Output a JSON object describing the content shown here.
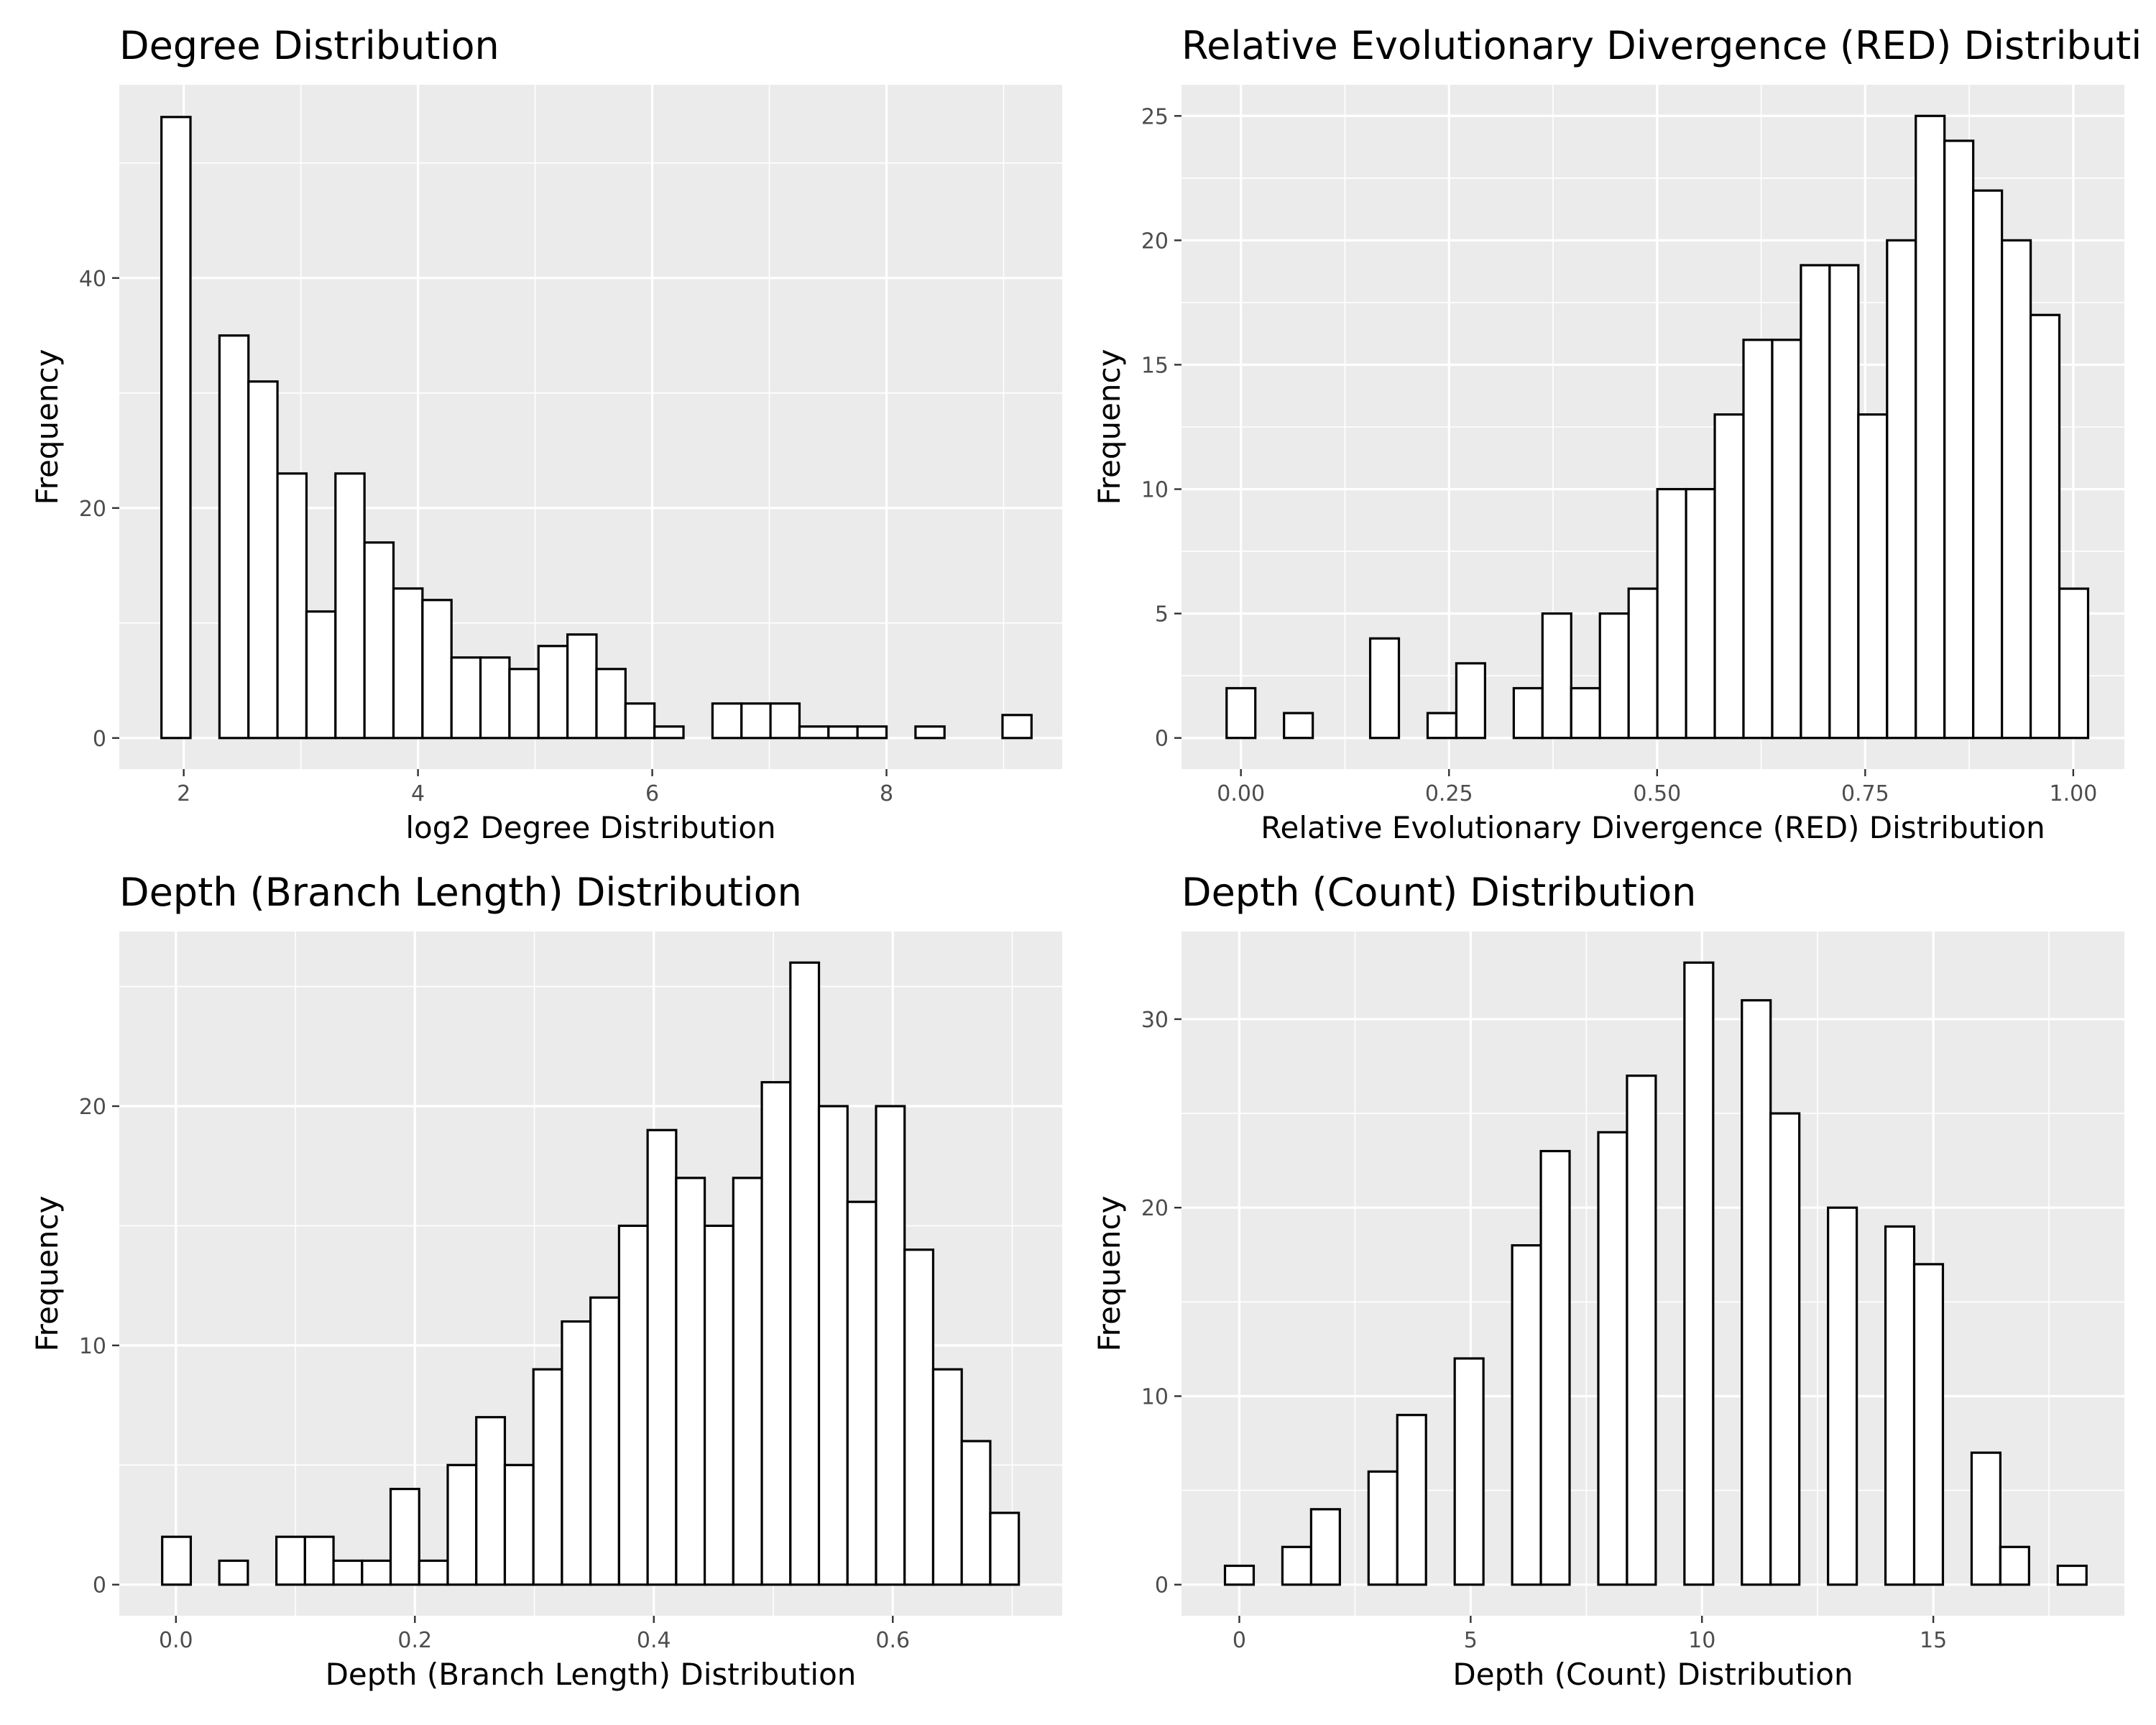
{
  "chart_data": [
    {
      "type": "bar",
      "title": "Degree Distribution",
      "xlabel": "log2 Degree Distribution",
      "ylabel": "Frequency",
      "xlim": [
        1.45,
        9.5
      ],
      "ylim": [
        -2.7,
        56.8
      ],
      "xticks": [
        2,
        4,
        6,
        8
      ],
      "xtick_labels": [
        "2",
        "4",
        "6",
        "8"
      ],
      "yticks": [
        0,
        20,
        40
      ],
      "ytick_labels": [
        "0",
        "20",
        "40"
      ],
      "grid": true,
      "bin_start": 1.81,
      "bin_width": 0.2476,
      "values": [
        54,
        0,
        35,
        31,
        23,
        11,
        23,
        17,
        13,
        12,
        7,
        7,
        6,
        8,
        9,
        6,
        3,
        1,
        0,
        3,
        3,
        3,
        1,
        1,
        1,
        0,
        1,
        0,
        0,
        2
      ]
    },
    {
      "type": "bar",
      "title": "Relative Evolutionary Divergence (RED) Distribution",
      "xlabel": "Relative Evolutionary Divergence (RED) Distribution",
      "ylabel": "Frequency",
      "xlim": [
        -0.0714,
        1.0614
      ],
      "ylim": [
        -1.25,
        26.25
      ],
      "xticks": [
        0,
        0.25,
        0.5,
        0.75,
        1
      ],
      "xtick_labels": [
        "0.00",
        "0.25",
        "0.50",
        "0.75",
        "1.00"
      ],
      "yticks": [
        0,
        5,
        10,
        15,
        20,
        25
      ],
      "ytick_labels": [
        "0",
        "5",
        "10",
        "15",
        "20",
        "25"
      ],
      "grid": true,
      "bin_start": -0.0172,
      "bin_width": 0.0345,
      "values": [
        2,
        0,
        1,
        0,
        0,
        4,
        0,
        1,
        3,
        0,
        2,
        5,
        2,
        5,
        6,
        10,
        10,
        13,
        16,
        16,
        19,
        19,
        13,
        20,
        25,
        24,
        22,
        20,
        17,
        6
      ]
    },
    {
      "type": "bar",
      "title": "Depth (Branch Length) Distribution",
      "xlabel": "Depth (Branch Length) Distribution",
      "ylabel": "Frequency",
      "xlim": [
        -0.0474,
        0.7418
      ],
      "ylim": [
        -1.3,
        27.3
      ],
      "xticks": [
        0,
        0.2,
        0.4,
        0.6
      ],
      "xtick_labels": [
        "0.0",
        "0.2",
        "0.4",
        "0.6"
      ],
      "yticks": [
        0,
        10,
        20
      ],
      "ytick_labels": [
        "0",
        "10",
        "20"
      ],
      "grid": true,
      "bin_start": -0.0115,
      "bin_width": 0.0239,
      "values": [
        2,
        0,
        1,
        0,
        2,
        2,
        1,
        1,
        4,
        1,
        5,
        7,
        5,
        9,
        11,
        12,
        15,
        19,
        17,
        15,
        17,
        21,
        26,
        20,
        16,
        20,
        14,
        9,
        6,
        3
      ]
    },
    {
      "type": "bar",
      "title": "Depth (Count) Distribution",
      "xlabel": "Depth (Count) Distribution",
      "ylabel": "Frequency",
      "xlim": [
        -1.25,
        19.13
      ],
      "ylim": [
        -1.65,
        34.65
      ],
      "xticks": [
        0,
        5,
        10,
        15
      ],
      "xtick_labels": [
        "0",
        "5",
        "10",
        "15"
      ],
      "yticks": [
        0,
        10,
        20,
        30
      ],
      "ytick_labels": [
        "0",
        "10",
        "20",
        "30"
      ],
      "grid": true,
      "bin_start": -0.31,
      "bin_width": 0.6207,
      "values": [
        1,
        0,
        2,
        4,
        0,
        6,
        9,
        0,
        12,
        0,
        18,
        23,
        0,
        24,
        27,
        0,
        33,
        0,
        31,
        25,
        0,
        20,
        0,
        19,
        17,
        0,
        7,
        2,
        0,
        1
      ]
    }
  ]
}
